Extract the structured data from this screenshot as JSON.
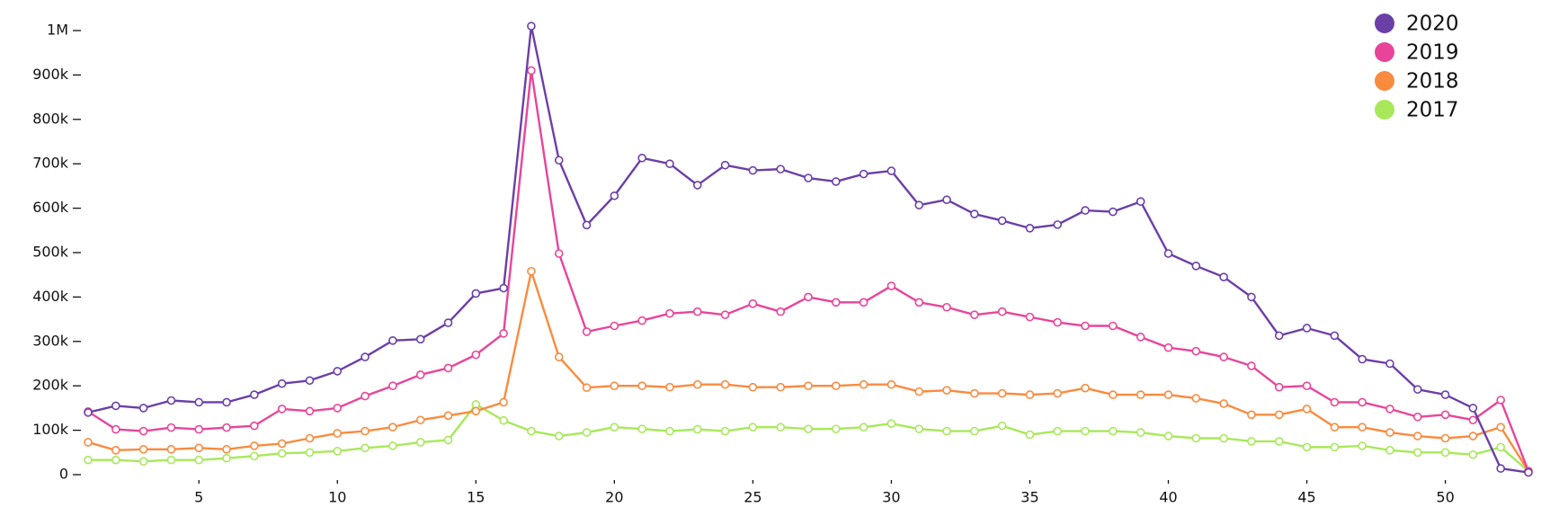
{
  "chart_data": {
    "type": "line",
    "x": [
      1,
      2,
      3,
      4,
      5,
      6,
      7,
      8,
      9,
      10,
      11,
      12,
      13,
      14,
      15,
      16,
      17,
      18,
      19,
      20,
      21,
      22,
      23,
      24,
      25,
      26,
      27,
      28,
      29,
      30,
      31,
      32,
      33,
      34,
      35,
      36,
      37,
      38,
      39,
      40,
      41,
      42,
      43,
      44,
      45,
      46,
      47,
      48,
      49,
      50,
      51,
      52,
      53
    ],
    "xlim": [
      1,
      53
    ],
    "xticks": [
      5,
      10,
      15,
      20,
      25,
      30,
      35,
      40,
      45,
      50
    ],
    "ylim": [
      0,
      1000000
    ],
    "yticks": [
      {
        "value": 0,
        "label": "0"
      },
      {
        "value": 100000,
        "label": "100k"
      },
      {
        "value": 200000,
        "label": "200k"
      },
      {
        "value": 300000,
        "label": "300k"
      },
      {
        "value": 400000,
        "label": "400k"
      },
      {
        "value": 500000,
        "label": "500k"
      },
      {
        "value": 600000,
        "label": "600k"
      },
      {
        "value": 700000,
        "label": "700k"
      },
      {
        "value": 800000,
        "label": "800k"
      },
      {
        "value": 900000,
        "label": "900k"
      },
      {
        "value": 1000000,
        "label": "1M"
      }
    ],
    "legend": "top-right",
    "series": [
      {
        "name": "2020",
        "color": "#6b3fa8",
        "values": [
          140000,
          155000,
          150000,
          167000,
          163000,
          163000,
          180000,
          205000,
          212000,
          233000,
          265000,
          302000,
          305000,
          342000,
          408000,
          420000,
          1010000,
          708000,
          562000,
          628000,
          713000,
          700000,
          652000,
          697000,
          685000,
          688000,
          668000,
          660000,
          677000,
          684000,
          607000,
          619000,
          587000,
          572000,
          555000,
          563000,
          595000,
          592000,
          615000,
          498000,
          470000,
          445000,
          400000,
          313000,
          330000,
          313000,
          260000,
          250000,
          192000,
          180000,
          150000,
          14000,
          5000
        ]
      },
      {
        "name": "2019",
        "color": "#e8459a",
        "values": [
          142000,
          102000,
          98000,
          106000,
          102000,
          106000,
          110000,
          148000,
          143000,
          150000,
          177000,
          200000,
          225000,
          240000,
          270000,
          318000,
          910000,
          498000,
          322000,
          335000,
          347000,
          363000,
          367000,
          360000,
          385000,
          367000,
          400000,
          388000,
          388000,
          425000,
          388000,
          377000,
          360000,
          367000,
          355000,
          343000,
          335000,
          335000,
          310000,
          286000,
          278000,
          265000,
          245000,
          197000,
          200000,
          163000,
          163000,
          148000,
          130000,
          135000,
          123000,
          168000,
          8000
        ]
      },
      {
        "name": "2018",
        "color": "#f98b3e",
        "values": [
          73000,
          55000,
          57000,
          57000,
          60000,
          57000,
          65000,
          70000,
          82000,
          93000,
          98000,
          107000,
          123000,
          133000,
          143000,
          163000,
          458000,
          265000,
          196000,
          200000,
          200000,
          197000,
          203000,
          203000,
          197000,
          197000,
          200000,
          200000,
          203000,
          203000,
          187000,
          190000,
          183000,
          183000,
          180000,
          183000,
          195000,
          180000,
          180000,
          180000,
          172000,
          160000,
          135000,
          135000,
          148000,
          107000,
          107000,
          95000,
          87000,
          82000,
          87000,
          107000,
          8000
        ]
      },
      {
        "name": "2017",
        "color": "#a8e85a",
        "values": [
          33000,
          33000,
          30000,
          33000,
          33000,
          37000,
          42000,
          48000,
          50000,
          53000,
          60000,
          65000,
          73000,
          78000,
          158000,
          122000,
          98000,
          87000,
          95000,
          107000,
          103000,
          98000,
          102000,
          98000,
          107000,
          107000,
          103000,
          103000,
          107000,
          115000,
          103000,
          98000,
          98000,
          110000,
          90000,
          98000,
          98000,
          98000,
          95000,
          87000,
          82000,
          82000,
          75000,
          75000,
          62000,
          62000,
          65000,
          55000,
          50000,
          50000,
          45000,
          62000,
          8000
        ]
      }
    ]
  }
}
